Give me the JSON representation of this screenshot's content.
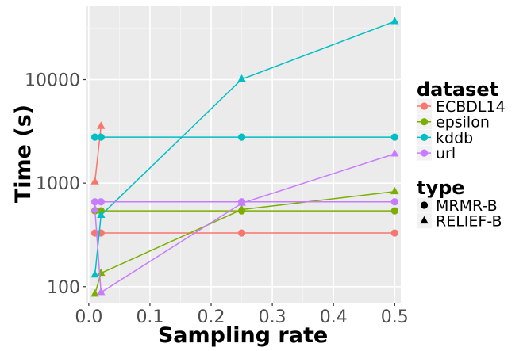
{
  "chart_data": {
    "type": "line",
    "xlabel": "Sampling rate",
    "ylabel": "Time (s)",
    "xlim": [
      -0.005,
      0.51
    ],
    "ylim": [
      70,
      52000
    ],
    "yscale": "log",
    "x_ticks": [
      0,
      0.1,
      0.2,
      0.3,
      0.4,
      0.5
    ],
    "x_tick_labels": [
      "0.0",
      "0.1",
      "0.2",
      "0.3",
      "0.4",
      "0.5"
    ],
    "y_ticks": [
      100,
      1000,
      10000
    ],
    "y_tick_labels": [
      "100",
      "1000",
      "10000"
    ],
    "grid": true,
    "legend": {
      "placement": "right",
      "color_title": "dataset",
      "shape_title": "type",
      "color_items": [
        {
          "name": "ECBDL14",
          "color": "#F8766D"
        },
        {
          "name": "epsilon",
          "color": "#7CAE00"
        },
        {
          "name": "kddb",
          "color": "#00BFC4"
        },
        {
          "name": "url",
          "color": "#C77CFF"
        }
      ],
      "shape_items": [
        {
          "name": "MRMR-B",
          "shape": "circle"
        },
        {
          "name": "RELIEF-B",
          "shape": "triangle"
        }
      ]
    },
    "series": [
      {
        "dataset": "ECBDL14",
        "type": "MRMR-B",
        "x": [
          0.01,
          0.02,
          0.25,
          0.5
        ],
        "y": [
          330,
          330,
          330,
          330
        ]
      },
      {
        "dataset": "ECBDL14",
        "type": "RELIEF-B",
        "x": [
          0.01,
          0.02
        ],
        "y": [
          1030,
          3550
        ]
      },
      {
        "dataset": "epsilon",
        "type": "MRMR-B",
        "x": [
          0.01,
          0.02,
          0.25,
          0.5
        ],
        "y": [
          540,
          540,
          540,
          540
        ]
      },
      {
        "dataset": "epsilon",
        "type": "RELIEF-B",
        "x": [
          0.01,
          0.02,
          0.25,
          0.5
        ],
        "y": [
          85,
          135,
          555,
          830
        ]
      },
      {
        "dataset": "kddb",
        "type": "MRMR-B",
        "x": [
          0.01,
          0.02,
          0.25,
          0.5
        ],
        "y": [
          2780,
          2780,
          2780,
          2780
        ]
      },
      {
        "dataset": "kddb",
        "type": "RELIEF-B",
        "x": [
          0.01,
          0.02,
          0.25,
          0.5
        ],
        "y": [
          130,
          490,
          10100,
          36500
        ]
      },
      {
        "dataset": "url",
        "type": "MRMR-B",
        "x": [
          0.01,
          0.02,
          0.25,
          0.5
        ],
        "y": [
          660,
          660,
          660,
          660
        ]
      },
      {
        "dataset": "url",
        "type": "RELIEF-B",
        "x": [
          0.01,
          0.02,
          0.25,
          0.5
        ],
        "y": [
          560,
          88,
          640,
          1920
        ]
      }
    ]
  }
}
